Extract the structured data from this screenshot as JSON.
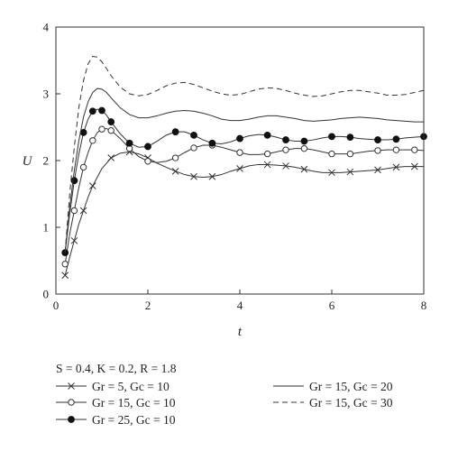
{
  "chart_data": {
    "type": "line",
    "xlabel": "t",
    "ylabel": "U",
    "xlim": [
      0,
      8
    ],
    "ylim": [
      0,
      4
    ],
    "xticks": [
      "0",
      "2",
      "4",
      "6",
      "8"
    ],
    "yticks": [
      "0",
      "1",
      "2",
      "3",
      "4"
    ],
    "grid": false,
    "legend_position": "bottom",
    "params_text": "S = 0.4, K = 0.2, R = 1.8",
    "series": [
      {
        "name": "Gr = 5, Gc = 10",
        "marker": "x",
        "linestyle": "solid",
        "points": [
          [
            0.2,
            0.28
          ],
          [
            0.3,
            0.55
          ],
          [
            0.4,
            0.8
          ],
          [
            0.5,
            1.05
          ],
          [
            0.6,
            1.25
          ],
          [
            0.7,
            1.45
          ],
          [
            0.8,
            1.62
          ],
          [
            1.0,
            1.88
          ],
          [
            1.2,
            2.04
          ],
          [
            1.4,
            2.11
          ],
          [
            1.6,
            2.13
          ],
          [
            1.8,
            2.1
          ],
          [
            2.0,
            2.04
          ],
          [
            2.2,
            1.96
          ],
          [
            2.4,
            1.9
          ],
          [
            2.6,
            1.84
          ],
          [
            2.8,
            1.79
          ],
          [
            3.0,
            1.76
          ],
          [
            3.2,
            1.75
          ],
          [
            3.4,
            1.76
          ],
          [
            3.6,
            1.79
          ],
          [
            3.8,
            1.84
          ],
          [
            4.0,
            1.88
          ],
          [
            4.2,
            1.92
          ],
          [
            4.4,
            1.94
          ],
          [
            4.6,
            1.94
          ],
          [
            4.8,
            1.93
          ],
          [
            5.0,
            1.92
          ],
          [
            5.2,
            1.9
          ],
          [
            5.4,
            1.87
          ],
          [
            5.6,
            1.84
          ],
          [
            5.8,
            1.82
          ],
          [
            6.0,
            1.82
          ],
          [
            6.2,
            1.82
          ],
          [
            6.4,
            1.83
          ],
          [
            6.6,
            1.84
          ],
          [
            6.8,
            1.85
          ],
          [
            7.0,
            1.86
          ],
          [
            7.2,
            1.88
          ],
          [
            7.4,
            1.9
          ],
          [
            7.6,
            1.91
          ],
          [
            7.8,
            1.91
          ],
          [
            8.0,
            1.91
          ]
        ],
        "marker_x": [
          0.2,
          0.4,
          0.6,
          0.8,
          1.2,
          1.6,
          2.0,
          2.6,
          3.0,
          3.4,
          4.0,
          4.6,
          5.0,
          5.4,
          6.0,
          6.4,
          7.0,
          7.4,
          7.8
        ]
      },
      {
        "name": "Gr = 15, Gc = 10",
        "marker": "open-circle",
        "linestyle": "solid",
        "points": [
          [
            0.2,
            0.45
          ],
          [
            0.3,
            0.9
          ],
          [
            0.4,
            1.25
          ],
          [
            0.5,
            1.6
          ],
          [
            0.6,
            1.9
          ],
          [
            0.7,
            2.12
          ],
          [
            0.8,
            2.3
          ],
          [
            0.9,
            2.42
          ],
          [
            1.0,
            2.47
          ],
          [
            1.1,
            2.48
          ],
          [
            1.2,
            2.45
          ],
          [
            1.4,
            2.33
          ],
          [
            1.6,
            2.18
          ],
          [
            1.8,
            2.06
          ],
          [
            2.0,
            1.99
          ],
          [
            2.2,
            1.97
          ],
          [
            2.4,
            1.99
          ],
          [
            2.6,
            2.04
          ],
          [
            2.8,
            2.12
          ],
          [
            3.0,
            2.19
          ],
          [
            3.2,
            2.23
          ],
          [
            3.4,
            2.23
          ],
          [
            3.6,
            2.2
          ],
          [
            3.8,
            2.16
          ],
          [
            4.0,
            2.12
          ],
          [
            4.2,
            2.09
          ],
          [
            4.4,
            2.09
          ],
          [
            4.6,
            2.1
          ],
          [
            4.8,
            2.13
          ],
          [
            5.0,
            2.16
          ],
          [
            5.2,
            2.18
          ],
          [
            5.4,
            2.18
          ],
          [
            5.6,
            2.16
          ],
          [
            5.8,
            2.13
          ],
          [
            6.0,
            2.1
          ],
          [
            6.2,
            2.1
          ],
          [
            6.4,
            2.1
          ],
          [
            6.6,
            2.12
          ],
          [
            6.8,
            2.14
          ],
          [
            7.0,
            2.15
          ],
          [
            7.2,
            2.16
          ],
          [
            7.4,
            2.16
          ],
          [
            7.6,
            2.16
          ],
          [
            7.8,
            2.16
          ],
          [
            8.0,
            2.15
          ]
        ],
        "marker_x": [
          0.2,
          0.4,
          0.6,
          0.8,
          1.0,
          1.2,
          1.6,
          2.0,
          2.6,
          3.0,
          3.4,
          4.0,
          4.6,
          5.0,
          5.4,
          6.0,
          6.4,
          7.0,
          7.4,
          7.8
        ]
      },
      {
        "name": "Gr = 25, Gc = 10",
        "marker": "filled-circle",
        "linestyle": "solid",
        "points": [
          [
            0.2,
            0.62
          ],
          [
            0.3,
            1.2
          ],
          [
            0.4,
            1.7
          ],
          [
            0.5,
            2.1
          ],
          [
            0.6,
            2.42
          ],
          [
            0.7,
            2.62
          ],
          [
            0.8,
            2.74
          ],
          [
            0.9,
            2.77
          ],
          [
            1.0,
            2.75
          ],
          [
            1.1,
            2.68
          ],
          [
            1.2,
            2.58
          ],
          [
            1.4,
            2.4
          ],
          [
            1.6,
            2.26
          ],
          [
            1.8,
            2.2
          ],
          [
            2.0,
            2.21
          ],
          [
            2.2,
            2.29
          ],
          [
            2.4,
            2.38
          ],
          [
            2.6,
            2.43
          ],
          [
            2.8,
            2.43
          ],
          [
            3.0,
            2.38
          ],
          [
            3.2,
            2.31
          ],
          [
            3.4,
            2.26
          ],
          [
            3.6,
            2.25
          ],
          [
            3.8,
            2.28
          ],
          [
            4.0,
            2.33
          ],
          [
            4.2,
            2.37
          ],
          [
            4.4,
            2.39
          ],
          [
            4.6,
            2.38
          ],
          [
            4.8,
            2.35
          ],
          [
            5.0,
            2.31
          ],
          [
            5.2,
            2.29
          ],
          [
            5.4,
            2.29
          ],
          [
            5.6,
            2.31
          ],
          [
            5.8,
            2.34
          ],
          [
            6.0,
            2.36
          ],
          [
            6.2,
            2.36
          ],
          [
            6.4,
            2.35
          ],
          [
            6.6,
            2.33
          ],
          [
            6.8,
            2.32
          ],
          [
            7.0,
            2.31
          ],
          [
            7.2,
            2.31
          ],
          [
            7.4,
            2.32
          ],
          [
            7.6,
            2.34
          ],
          [
            7.8,
            2.35
          ],
          [
            8.0,
            2.36
          ]
        ],
        "marker_x": [
          0.2,
          0.4,
          0.6,
          0.8,
          1.0,
          1.2,
          1.6,
          2.0,
          2.6,
          3.0,
          3.4,
          4.0,
          4.6,
          5.0,
          5.4,
          6.0,
          6.4,
          7.0,
          7.4,
          8.0
        ]
      },
      {
        "name": "Gr = 15, Gc = 20",
        "marker": "none",
        "linestyle": "solid",
        "points": [
          [
            0.2,
            0.62
          ],
          [
            0.3,
            1.3
          ],
          [
            0.4,
            1.85
          ],
          [
            0.5,
            2.3
          ],
          [
            0.6,
            2.65
          ],
          [
            0.7,
            2.88
          ],
          [
            0.8,
            3.02
          ],
          [
            0.9,
            3.08
          ],
          [
            1.0,
            3.07
          ],
          [
            1.1,
            3.02
          ],
          [
            1.2,
            2.94
          ],
          [
            1.4,
            2.79
          ],
          [
            1.6,
            2.69
          ],
          [
            1.8,
            2.64
          ],
          [
            2.0,
            2.64
          ],
          [
            2.2,
            2.67
          ],
          [
            2.4,
            2.71
          ],
          [
            2.6,
            2.74
          ],
          [
            2.8,
            2.75
          ],
          [
            3.0,
            2.74
          ],
          [
            3.2,
            2.71
          ],
          [
            3.4,
            2.67
          ],
          [
            3.6,
            2.62
          ],
          [
            3.8,
            2.6
          ],
          [
            4.0,
            2.6
          ],
          [
            4.2,
            2.62
          ],
          [
            4.4,
            2.65
          ],
          [
            4.6,
            2.67
          ],
          [
            4.8,
            2.67
          ],
          [
            5.0,
            2.65
          ],
          [
            5.2,
            2.63
          ],
          [
            5.4,
            2.6
          ],
          [
            5.6,
            2.59
          ],
          [
            5.8,
            2.6
          ],
          [
            6.0,
            2.61
          ],
          [
            6.2,
            2.63
          ],
          [
            6.4,
            2.64
          ],
          [
            6.6,
            2.65
          ],
          [
            6.8,
            2.64
          ],
          [
            7.0,
            2.63
          ],
          [
            7.2,
            2.61
          ],
          [
            7.4,
            2.6
          ],
          [
            7.6,
            2.59
          ],
          [
            7.8,
            2.58
          ],
          [
            8.0,
            2.58
          ]
        ],
        "marker_x": []
      },
      {
        "name": "Gr = 15, Gc = 30",
        "marker": "none",
        "linestyle": "dashed",
        "points": [
          [
            0.2,
            0.62
          ],
          [
            0.3,
            1.5
          ],
          [
            0.4,
            2.2
          ],
          [
            0.5,
            2.8
          ],
          [
            0.6,
            3.2
          ],
          [
            0.7,
            3.45
          ],
          [
            0.8,
            3.56
          ],
          [
            0.9,
            3.55
          ],
          [
            1.0,
            3.48
          ],
          [
            1.1,
            3.38
          ],
          [
            1.2,
            3.27
          ],
          [
            1.4,
            3.1
          ],
          [
            1.6,
            3.0
          ],
          [
            1.8,
            2.97
          ],
          [
            2.0,
            2.99
          ],
          [
            2.2,
            3.05
          ],
          [
            2.4,
            3.12
          ],
          [
            2.6,
            3.16
          ],
          [
            2.8,
            3.17
          ],
          [
            3.0,
            3.14
          ],
          [
            3.2,
            3.09
          ],
          [
            3.4,
            3.04
          ],
          [
            3.6,
            3.0
          ],
          [
            3.8,
            2.98
          ],
          [
            4.0,
            2.99
          ],
          [
            4.2,
            3.03
          ],
          [
            4.4,
            3.07
          ],
          [
            4.6,
            3.09
          ],
          [
            4.8,
            3.08
          ],
          [
            5.0,
            3.05
          ],
          [
            5.2,
            3.01
          ],
          [
            5.4,
            2.98
          ],
          [
            5.6,
            2.96
          ],
          [
            5.8,
            2.97
          ],
          [
            6.0,
            3.0
          ],
          [
            6.2,
            3.03
          ],
          [
            6.4,
            3.05
          ],
          [
            6.6,
            3.05
          ],
          [
            6.8,
            3.03
          ],
          [
            7.0,
            3.01
          ],
          [
            7.2,
            2.98
          ],
          [
            7.4,
            2.98
          ],
          [
            7.6,
            2.99
          ],
          [
            7.8,
            3.02
          ],
          [
            8.0,
            3.05
          ]
        ],
        "marker_x": []
      }
    ]
  }
}
